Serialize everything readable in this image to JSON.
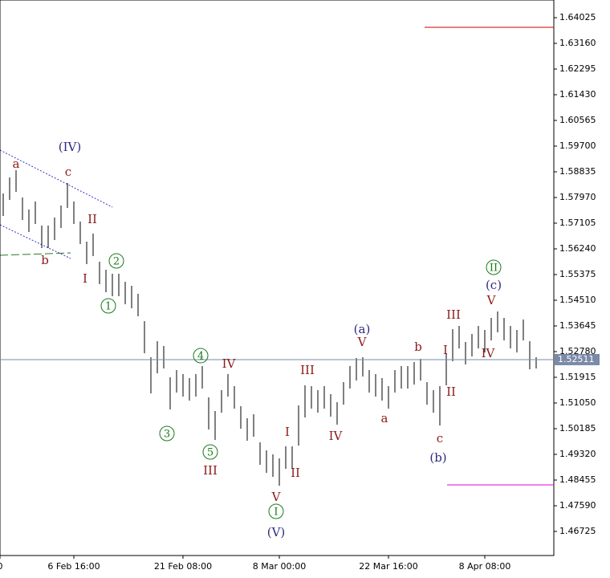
{
  "chart_data": {
    "type": "ohlc",
    "xlim": [
      -0.5,
      85.75
    ],
    "xticks": [
      {
        "value": -0.5,
        "label": "0"
      },
      {
        "value": 11,
        "label": "6 Feb 16:00"
      },
      {
        "value": 28,
        "label": "21 Feb 08:00"
      },
      {
        "value": 43,
        "label": "8 Mar 00:00"
      },
      {
        "value": 60,
        "label": "22 Mar 16:00"
      },
      {
        "value": 75,
        "label": "8 Apr 08:00"
      }
    ],
    "ylim": [
      1.45914,
      1.6462
    ],
    "yticks": [
      1.64025,
      {
        "value": 1.6316,
        "label": "1.63160"
      },
      1.62295,
      {
        "value": 1.6143,
        "label": "1.61430"
      },
      1.60565,
      {
        "value": 1.597,
        "label": "1.59700"
      },
      1.58835,
      {
        "value": 1.5797,
        "label": "1.57970"
      },
      1.57105,
      {
        "value": 1.5624,
        "label": "1.56240"
      },
      1.55375,
      {
        "value": 1.5451,
        "label": "1.54510"
      },
      1.53645,
      {
        "value": 1.5278,
        "label": "1.52780"
      },
      1.51915,
      {
        "value": 1.5105,
        "label": "1.51050"
      },
      1.50185,
      {
        "value": 1.4932,
        "label": "1.49320"
      },
      1.48455,
      {
        "value": 1.4759,
        "label": "1.47590"
      },
      1.46725
    ],
    "color": "#000000",
    "high": [
      1.58105,
      1.58646,
      1.58889,
      1.5797,
      1.57565,
      1.57835,
      1.57024,
      1.57024,
      1.57294,
      1.577,
      1.58457,
      1.57835,
      1.57159,
      1.56483,
      1.56754,
      1.55808,
      1.55537,
      1.55402,
      1.55402,
      1.55132,
      1.54997,
      1.54726,
      1.53807,
      1.52591,
      1.53132,
      1.52969,
      1.51915,
      1.52158,
      1.52023,
      1.51888,
      1.52023,
      1.52294,
      1.51239,
      1.5078,
      1.51483,
      1.52023,
      1.51618,
      1.50942,
      1.50537,
      1.50672,
      1.49726,
      1.49455,
      1.4932,
      1.49185,
      1.49591,
      1.49591,
      1.50969,
      1.51645,
      1.51618,
      1.51483,
      1.51618,
      1.51348,
      1.51077,
      1.51753,
      1.52294,
      1.52564,
      1.52591,
      1.52158,
      1.52023,
      1.51888,
      1.51618,
      1.52158,
      1.52294,
      1.52294,
      1.52429,
      1.52537,
      1.51753,
      1.51483,
      1.51618,
      1.52726,
      1.53537,
      1.53645,
      1.53105,
      1.53375,
      1.53645,
      1.5351,
      1.53915,
      1.54132,
      1.53915,
      1.53645,
      1.5351,
      1.53861,
      1.53132,
      1.52591
    ],
    "low": [
      1.57348,
      1.57889,
      1.58159,
      1.57213,
      1.56808,
      1.57078,
      1.56267,
      1.56267,
      1.56537,
      1.56943,
      1.57619,
      1.57078,
      1.56402,
      1.55727,
      1.55997,
      1.55051,
      1.5478,
      1.54645,
      1.54645,
      1.54375,
      1.5424,
      1.5397,
      1.52726,
      1.51375,
      1.5205,
      1.52213,
      1.50834,
      1.51402,
      1.51266,
      1.51131,
      1.51266,
      1.51537,
      1.50158,
      1.49807,
      1.50726,
      1.51266,
      1.50861,
      1.50185,
      1.4978,
      1.49915,
      1.48969,
      1.48698,
      1.48563,
      1.48266,
      1.48834,
      1.48834,
      1.49618,
      1.50564,
      1.50861,
      1.50726,
      1.50861,
      1.50591,
      1.5032,
      1.50996,
      1.51537,
      1.51807,
      1.51942,
      1.51402,
      1.51266,
      1.51131,
      1.50861,
      1.51402,
      1.51537,
      1.51537,
      1.51672,
      1.51807,
      1.50996,
      1.50726,
      1.50293,
      1.51645,
      1.52456,
      1.52888,
      1.52348,
      1.52618,
      1.52888,
      1.52753,
      1.53159,
      1.53429,
      1.53159,
      1.52888,
      1.52753,
      1.53159,
      1.52185,
      1.52213
    ],
    "current_price": 1.52511,
    "levels": [
      {
        "value": 1.63701,
        "color": "#cc0000"
      },
      {
        "value": 1.48293,
        "color": "#e000e0"
      }
    ],
    "annotations": [
      {
        "text": "(IV)",
        "color": "#2b2b80"
      },
      {
        "text": "a",
        "color": "#8b1a1a"
      },
      {
        "text": "c",
        "color": "#8b1a1a"
      },
      {
        "text": "II",
        "color": "#8b1a1a"
      },
      {
        "text": "b",
        "color": "#8b1a1a"
      },
      {
        "text": "I",
        "color": "#8b1a1a"
      },
      {
        "text": "2",
        "color": "#1a7a1a",
        "circled": true
      },
      {
        "text": "1",
        "color": "#1a7a1a",
        "circled": true
      },
      {
        "text": "4",
        "color": "#1a7a1a",
        "circled": true
      },
      {
        "text": "IV",
        "color": "#8b1a1a"
      },
      {
        "text": "3",
        "color": "#1a7a1a",
        "circled": true
      },
      {
        "text": "5",
        "color": "#1a7a1a",
        "circled": true
      },
      {
        "text": "III",
        "color": "#8b1a1a"
      },
      {
        "text": "III",
        "color": "#8b1a1a"
      },
      {
        "text": "I",
        "color": "#8b1a1a"
      },
      {
        "text": "II",
        "color": "#8b1a1a"
      },
      {
        "text": "V",
        "color": "#8b1a1a"
      },
      {
        "text": "I",
        "color": "#1a7a1a",
        "circled": true
      },
      {
        "text": "(V)",
        "color": "#2b2b80"
      },
      {
        "text": "IV",
        "color": "#8b1a1a"
      },
      {
        "text": "(a)",
        "color": "#2b2b80"
      },
      {
        "text": "V",
        "color": "#8b1a1a"
      },
      {
        "text": "a",
        "color": "#8b1a1a"
      },
      {
        "text": "b",
        "color": "#8b1a1a"
      },
      {
        "text": "I",
        "color": "#8b1a1a"
      },
      {
        "text": "III",
        "color": "#8b1a1a"
      },
      {
        "text": "II",
        "color": "#8b1a1a"
      },
      {
        "text": "c",
        "color": "#8b1a1a"
      },
      {
        "text": "(b)",
        "color": "#2b2b80"
      },
      {
        "text": "IV",
        "color": "#8b1a1a"
      },
      {
        "text": "V",
        "color": "#8b1a1a"
      },
      {
        "text": "(c)",
        "color": "#2b2b80"
      },
      {
        "text": "II",
        "color": "#1a7a1a",
        "circled": true
      }
    ]
  }
}
